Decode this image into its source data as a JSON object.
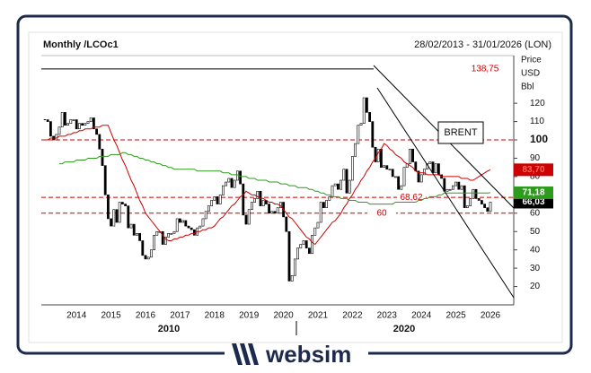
{
  "chart_data": {
    "type": "candlestick",
    "title": "Monthly /LCOc1",
    "subtitle": "28/02/2013 - 31/01/2026 (LON)",
    "y_label_lines": [
      "Price",
      "USD",
      "Bbl"
    ],
    "categories": [
      null,
      null,
      null,
      null,
      null,
      null,
      null,
      null,
      null,
      null,
      null,
      "2014",
      null,
      null,
      null,
      null,
      null,
      null,
      null,
      null,
      null,
      null,
      null,
      "2015",
      null,
      null,
      null,
      null,
      null,
      null,
      null,
      null,
      null,
      null,
      null,
      "2016",
      null,
      null,
      null,
      null,
      null,
      null,
      null,
      null,
      null,
      null,
      null,
      "2017",
      null,
      null,
      null,
      null,
      null,
      null,
      null,
      null,
      null,
      null,
      null,
      "2018",
      null,
      null,
      null,
      null,
      null,
      null,
      null,
      null,
      null,
      null,
      null,
      "2019",
      null,
      null,
      null,
      null,
      null,
      null,
      null,
      null,
      null,
      null,
      null,
      "2020",
      null,
      null,
      null,
      null,
      null,
      null,
      null,
      null,
      null,
      null,
      null,
      "2021",
      null,
      null,
      null,
      null,
      null,
      null,
      null,
      null,
      null,
      null,
      null,
      "2022",
      null,
      null,
      null,
      null,
      null,
      null,
      null,
      null,
      null,
      null,
      null,
      "2023",
      null,
      null,
      null,
      null,
      null,
      null,
      null,
      null,
      null,
      null,
      null,
      "2024",
      null,
      null,
      null,
      null,
      null,
      null,
      null,
      null,
      null,
      null,
      null,
      "2025",
      null,
      null,
      null,
      null,
      null,
      null,
      null,
      null,
      null,
      null,
      null,
      "2026"
    ],
    "series": [
      {
        "color": "#000000",
        "values": [
          111,
          110,
          102,
          100,
          103,
          107,
          115,
          108,
          109,
          111,
          111,
          106,
          109,
          108,
          109,
          110,
          112,
          106,
          103,
          95,
          86,
          70,
          57,
          53,
          62,
          55,
          66,
          65,
          64,
          52,
          54,
          48,
          49,
          45,
          37,
          35,
          36,
          40,
          48,
          50,
          50,
          43,
          47,
          49,
          49,
          50,
          57,
          55,
          56,
          53,
          52,
          51,
          48,
          52,
          53,
          57,
          61,
          64,
          67,
          69,
          65,
          70,
          75,
          77,
          79,
          74,
          78,
          83,
          76,
          59,
          54,
          62,
          66,
          68,
          72,
          64,
          67,
          65,
          60,
          61,
          60,
          63,
          66,
          58,
          50,
          23,
          26,
          35,
          41,
          43,
          45,
          41,
          38,
          48,
          52,
          55,
          66,
          63,
          67,
          69,
          75,
          76,
          73,
          78,
          84,
          71,
          78,
          91,
          98,
          108,
          109,
          123,
          115,
          110,
          96,
          88,
          95,
          85,
          86,
          84,
          84,
          80,
          80,
          73,
          75,
          85,
          87,
          95,
          88,
          83,
          77,
          81,
          84,
          87,
          88,
          82,
          87,
          81,
          79,
          72,
          73,
          73,
          75,
          77,
          73,
          75,
          63,
          64,
          68,
          73,
          68,
          67,
          65,
          63,
          61,
          66.03
        ],
        "value_labels": [
          null,
          null,
          null,
          null,
          null,
          null,
          null,
          null,
          null,
          null,
          null,
          null,
          null,
          null,
          null,
          null,
          null,
          null,
          null,
          null,
          null,
          null,
          null,
          null,
          null,
          null,
          null,
          null,
          null,
          null,
          null,
          null,
          null,
          null,
          null,
          null,
          null,
          null,
          null,
          null,
          null,
          null,
          null,
          null,
          null,
          null,
          null,
          null,
          null,
          null,
          null,
          null,
          null,
          null,
          null,
          null,
          null,
          null,
          null,
          null,
          null,
          null,
          null,
          null,
          null,
          null,
          null,
          null,
          null,
          null,
          null,
          null,
          null,
          null,
          null,
          null,
          null,
          null,
          null,
          null,
          null,
          null,
          null,
          null,
          null,
          null,
          null,
          null,
          null,
          null,
          null,
          null,
          null,
          null,
          null,
          null,
          null,
          null,
          null,
          null,
          null,
          null,
          null,
          null,
          null,
          null,
          null,
          null,
          null,
          null,
          null,
          null,
          null,
          null,
          null,
          null,
          null,
          null,
          null,
          null,
          null,
          null,
          null,
          null,
          null,
          null,
          null,
          null,
          null,
          null,
          null,
          null,
          null,
          null,
          null,
          null,
          null,
          null,
          null,
          null,
          null,
          null,
          null,
          null,
          null,
          null,
          null,
          null,
          null,
          null,
          null,
          null,
          null,
          null,
          null,
          "66,03"
        ]
      },
      {
        "color": "#cc0000",
        "values": [
          100,
          100,
          101,
          101,
          101,
          102,
          102,
          102,
          103,
          103,
          104,
          104,
          105,
          105,
          106,
          106,
          106,
          107,
          107,
          107,
          108,
          108,
          108,
          104,
          100,
          97,
          93,
          89,
          86,
          82,
          78,
          75,
          71,
          67,
          64,
          60,
          58,
          56,
          54,
          52,
          50,
          48,
          46,
          45,
          45,
          46,
          46,
          47,
          47,
          48,
          48,
          49,
          49,
          50,
          50,
          51,
          51,
          52,
          52,
          53,
          55,
          57,
          58,
          60,
          62,
          64,
          65,
          67,
          69,
          70,
          72,
          71,
          70,
          70,
          69,
          68,
          68,
          67,
          66,
          66,
          65,
          65,
          64,
          62,
          60,
          58,
          57,
          55,
          53,
          51,
          49,
          47,
          46,
          44,
          43,
          45,
          47,
          49,
          51,
          53,
          55,
          56,
          58,
          60,
          63,
          65,
          68,
          70,
          73,
          75,
          78,
          80,
          83,
          85,
          88,
          90,
          93,
          95,
          98,
          97,
          95,
          94,
          92,
          91,
          90,
          88,
          87,
          86,
          85,
          83,
          82,
          82,
          82,
          81,
          81,
          81,
          81,
          81,
          80,
          80,
          80,
          80,
          80,
          80,
          80,
          79,
          79,
          79,
          78,
          78,
          79,
          80,
          81,
          82,
          83,
          83.7
        ],
        "value_labels": [
          null,
          null,
          null,
          null,
          null,
          null,
          null,
          null,
          null,
          null,
          null,
          null,
          null,
          null,
          null,
          null,
          null,
          null,
          null,
          null,
          null,
          null,
          null,
          null,
          null,
          null,
          null,
          null,
          null,
          null,
          null,
          null,
          null,
          null,
          null,
          null,
          null,
          null,
          null,
          null,
          null,
          null,
          null,
          null,
          null,
          null,
          null,
          null,
          null,
          null,
          null,
          null,
          null,
          null,
          null,
          null,
          null,
          null,
          null,
          null,
          null,
          null,
          null,
          null,
          null,
          null,
          null,
          null,
          null,
          null,
          null,
          null,
          null,
          null,
          null,
          null,
          null,
          null,
          null,
          null,
          null,
          null,
          null,
          null,
          null,
          null,
          null,
          null,
          null,
          null,
          null,
          null,
          null,
          null,
          null,
          null,
          null,
          null,
          null,
          null,
          null,
          null,
          null,
          null,
          null,
          null,
          null,
          null,
          null,
          null,
          null,
          null,
          null,
          null,
          null,
          null,
          null,
          null,
          null,
          null,
          null,
          null,
          null,
          null,
          null,
          null,
          null,
          null,
          null,
          null,
          null,
          null,
          null,
          null,
          null,
          null,
          null,
          null,
          null,
          null,
          null,
          null,
          null,
          null,
          null,
          null,
          null,
          null,
          null,
          null,
          null,
          null,
          null,
          null,
          null,
          "83,70"
        ]
      },
      {
        "color": "#2e9a1e",
        "values": [
          null,
          null,
          null,
          null,
          null,
          87,
          87,
          88,
          88,
          88,
          88,
          89,
          89,
          89,
          89,
          90,
          90,
          90,
          90,
          91,
          91,
          91,
          91,
          92,
          92,
          92,
          92,
          93,
          93,
          92,
          92,
          91,
          91,
          90,
          90,
          89,
          89,
          88,
          88,
          87,
          87,
          86,
          86,
          85,
          85,
          84,
          84,
          84,
          84,
          84,
          84,
          84,
          84,
          83,
          83,
          83,
          83,
          83,
          83,
          83,
          83,
          83,
          82,
          82,
          82,
          81,
          81,
          81,
          80,
          80,
          80,
          79,
          79,
          79,
          78,
          78,
          78,
          78,
          77,
          77,
          77,
          77,
          76,
          76,
          76,
          75,
          75,
          75,
          74,
          74,
          74,
          74,
          73,
          73,
          72,
          72,
          71,
          71,
          70,
          70,
          69,
          69,
          69,
          68,
          68,
          68,
          67,
          67,
          67,
          66,
          66,
          66,
          66,
          65,
          65,
          65,
          65,
          65,
          65,
          65,
          65,
          65,
          66,
          66,
          66,
          66,
          66,
          66,
          66,
          66,
          67,
          67,
          68,
          68,
          69,
          69,
          69,
          70,
          70,
          71,
          71,
          71,
          71,
          71,
          71,
          71,
          71,
          71,
          71,
          71,
          71,
          71,
          71,
          71,
          71,
          71.18
        ],
        "value_labels": [
          null,
          null,
          null,
          null,
          null,
          null,
          null,
          null,
          null,
          null,
          null,
          null,
          null,
          null,
          null,
          null,
          null,
          null,
          null,
          null,
          null,
          null,
          null,
          null,
          null,
          null,
          null,
          null,
          null,
          null,
          null,
          null,
          null,
          null,
          null,
          null,
          null,
          null,
          null,
          null,
          null,
          null,
          null,
          null,
          null,
          null,
          null,
          null,
          null,
          null,
          null,
          null,
          null,
          null,
          null,
          null,
          null,
          null,
          null,
          null,
          null,
          null,
          null,
          null,
          null,
          null,
          null,
          null,
          null,
          null,
          null,
          null,
          null,
          null,
          null,
          null,
          null,
          null,
          null,
          null,
          null,
          null,
          null,
          null,
          null,
          null,
          null,
          null,
          null,
          null,
          null,
          null,
          null,
          null,
          null,
          null,
          null,
          null,
          null,
          null,
          null,
          null,
          null,
          null,
          null,
          null,
          null,
          null,
          null,
          null,
          null,
          null,
          null,
          null,
          null,
          null,
          null,
          null,
          null,
          null,
          null,
          null,
          null,
          null,
          null,
          null,
          null,
          null,
          null,
          null,
          null,
          null,
          null,
          null,
          null,
          null,
          null,
          null,
          null,
          null,
          null,
          null,
          null,
          null,
          null,
          null,
          null,
          null,
          null,
          null,
          null,
          null,
          null,
          null,
          null,
          "71,18"
        ]
      }
    ],
    "levels": [
      {
        "value": 138.75,
        "label": "138,75",
        "color": "#000000",
        "dashed": false
      },
      {
        "value": 100,
        "color": "#cc0000",
        "dashed": true
      },
      {
        "value": 68.62,
        "label": "68,62",
        "color": "#cc0000",
        "dashed": true
      },
      {
        "value": 60,
        "label": "60",
        "color": "#cc0000",
        "dashed": true
      }
    ],
    "ylim": [
      10,
      146
    ],
    "yticks": [
      20,
      30,
      40,
      50,
      60,
      70,
      80,
      90,
      100,
      110,
      120
    ],
    "emphasized_ytick": 100,
    "decade_labels": [
      "2010",
      "2020"
    ],
    "annotation": "BRENT",
    "watermark": "websim"
  }
}
